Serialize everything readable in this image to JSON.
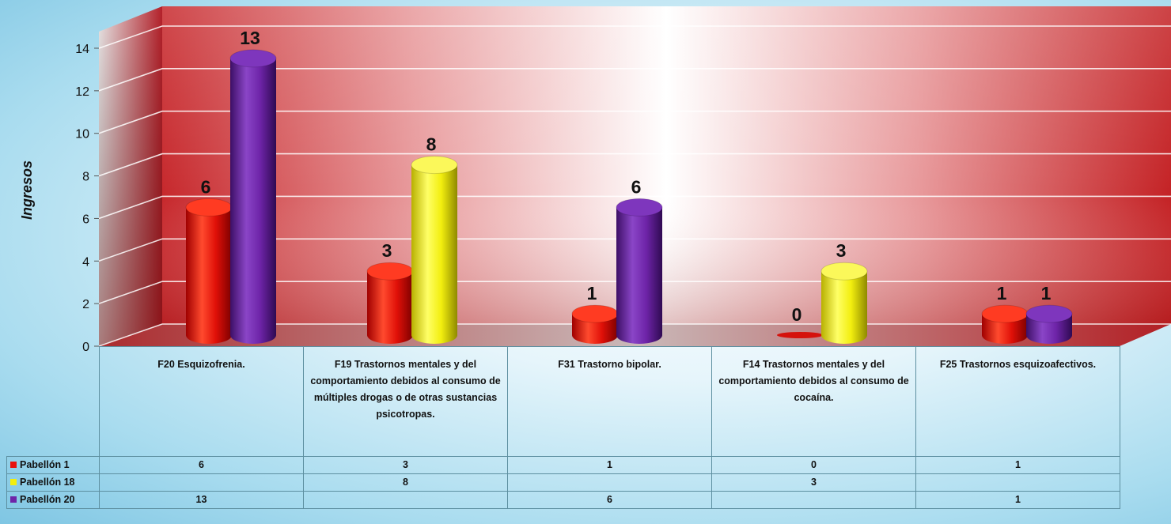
{
  "chart_data": {
    "type": "bar",
    "ylabel": "Ingresos",
    "ylim": [
      0,
      14
    ],
    "yticks": [
      "0",
      "2",
      "4",
      "6",
      "8",
      "10",
      "12",
      "14"
    ],
    "categories": [
      "F20 Esquizofrenia.",
      "F19 Trastornos mentales y del comportamiento debidos al consumo de múltiples drogas o de otras sustancias psicotropas.",
      "F31 Trastorno bipolar.",
      "F14 Trastornos mentales y del comportamiento debidos al consumo de cocaína.",
      "F25 Trastornos esquizoafectivos."
    ],
    "series": [
      {
        "name": "Pabellón 1",
        "color": "#e8110e",
        "values": [
          6,
          3,
          1,
          0,
          1
        ]
      },
      {
        "name": "Pabellón 18",
        "color": "#f2ee0e",
        "values": [
          null,
          8,
          null,
          3,
          null
        ]
      },
      {
        "name": "Pabellón 20",
        "color": "#6e24a8",
        "values": [
          13,
          null,
          6,
          null,
          1
        ]
      }
    ],
    "bar_labels": {
      "Pabellón 1": [
        "6",
        "3",
        "1",
        "0",
        "1"
      ],
      "Pabellón 18": [
        "",
        "8",
        "",
        "3",
        ""
      ],
      "Pabellón 20": [
        "13",
        "",
        "6",
        "",
        "1"
      ]
    },
    "table": {
      "Pabellón 1": [
        "6",
        "3",
        "1",
        "0",
        "1"
      ],
      "Pabellón 18": [
        "",
        "8",
        "",
        "3",
        ""
      ],
      "Pabellón 20": [
        "13",
        "",
        "6",
        "",
        "1"
      ]
    },
    "grid": true,
    "legend": "data-table"
  }
}
